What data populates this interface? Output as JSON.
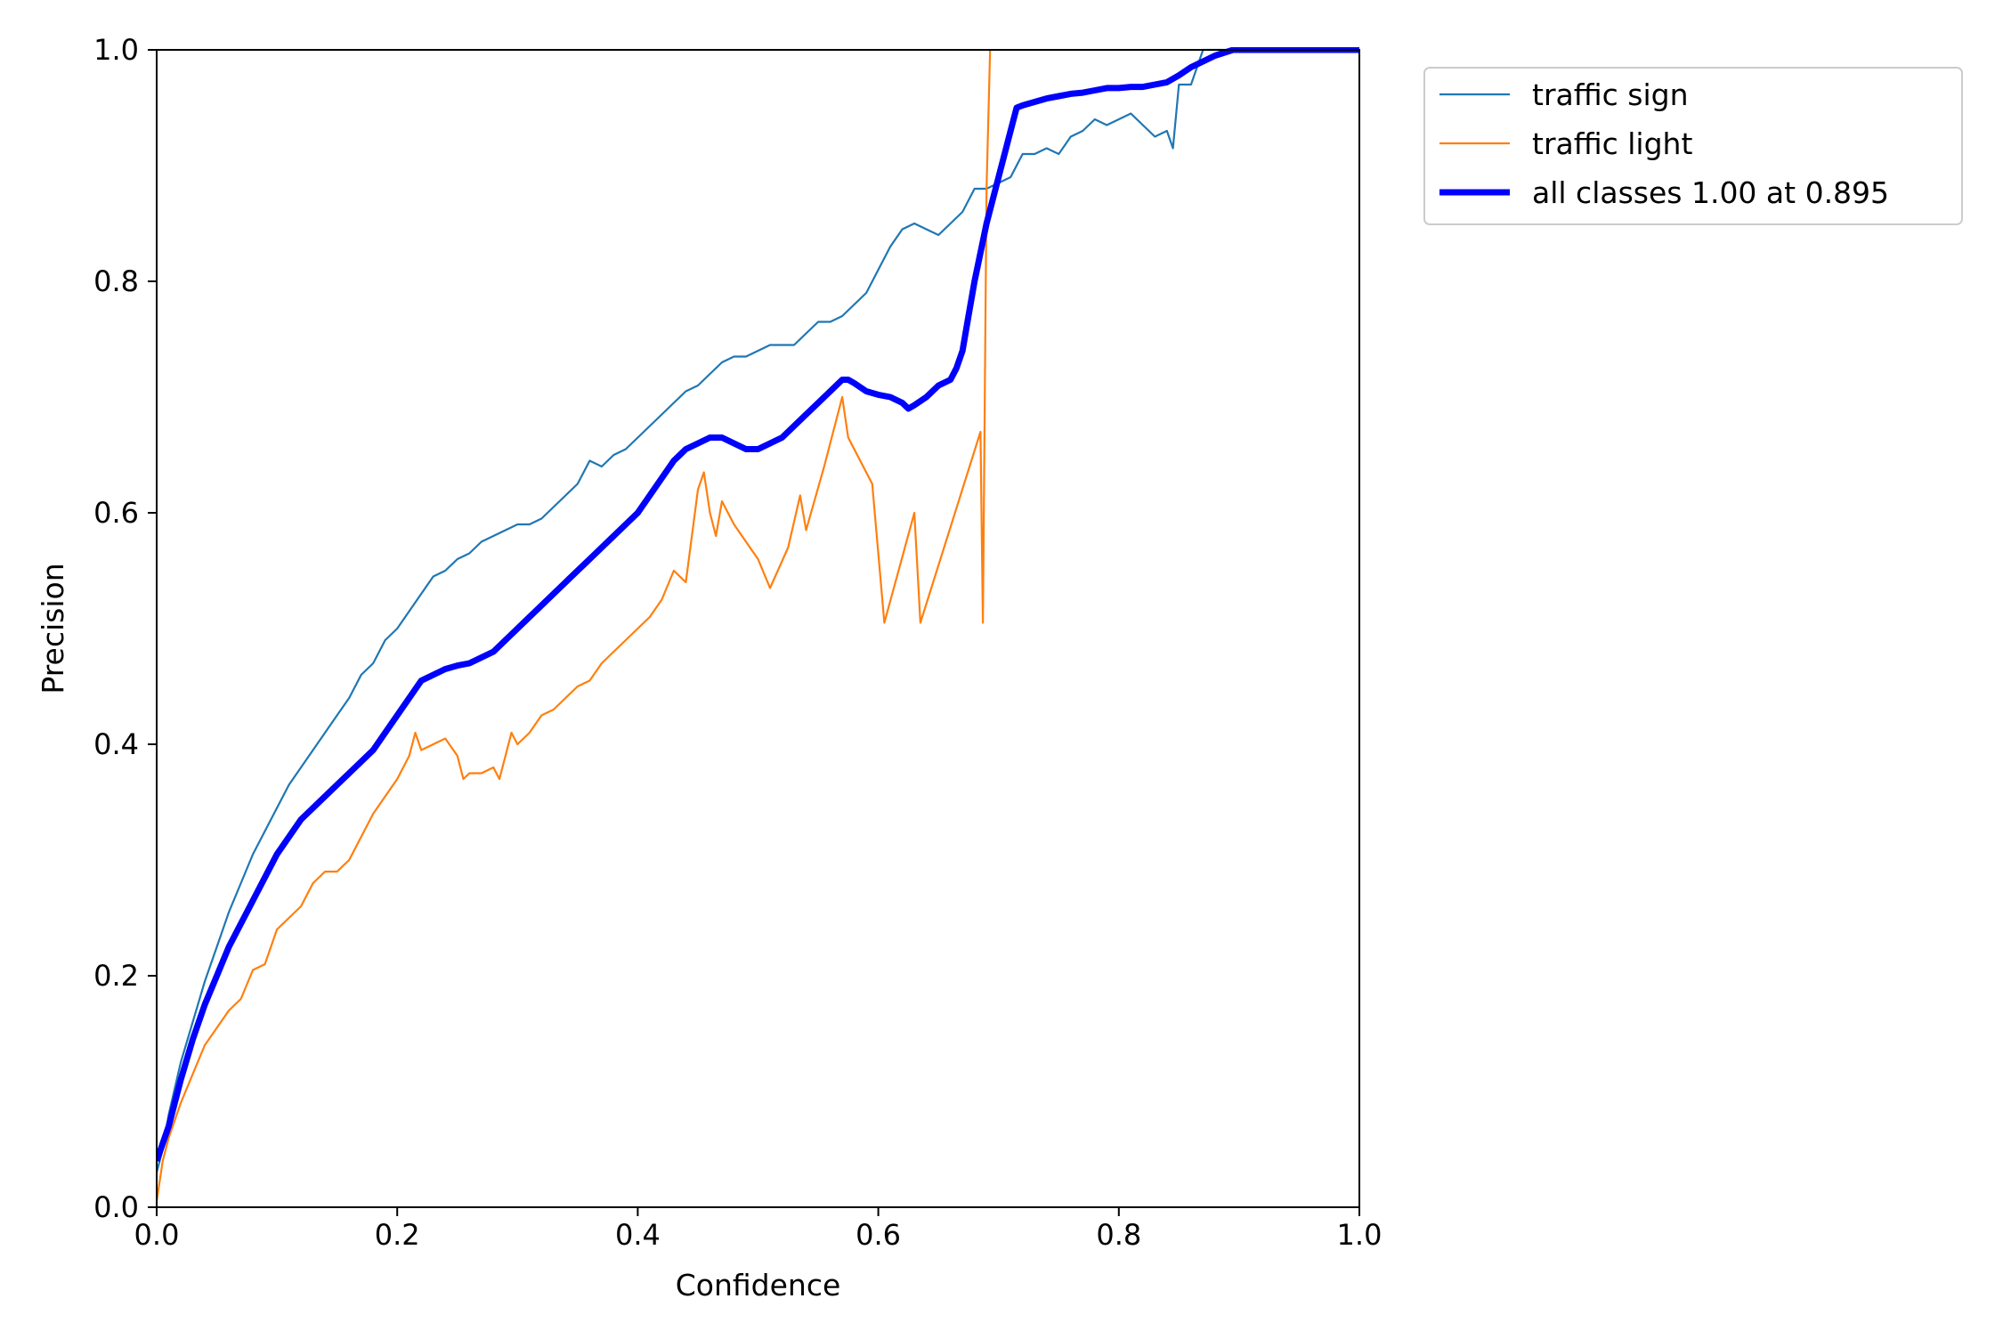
{
  "chart_data": {
    "type": "line",
    "title": "",
    "xlabel": "Confidence",
    "ylabel": "Precision",
    "xlim": [
      0.0,
      1.0
    ],
    "ylim": [
      0.0,
      1.0
    ],
    "xticks": [
      "0.0",
      "0.2",
      "0.4",
      "0.6",
      "0.8",
      "1.0"
    ],
    "yticks": [
      "0.0",
      "0.2",
      "0.4",
      "0.6",
      "0.8",
      "1.0"
    ],
    "grid": false,
    "legend_position": "outside-top-right",
    "series": [
      {
        "name": "traffic sign",
        "color": "#1f77b4",
        "line_weight": "thin",
        "points": [
          [
            0.0,
            0.03
          ],
          [
            0.005,
            0.05
          ],
          [
            0.01,
            0.08
          ],
          [
            0.02,
            0.125
          ],
          [
            0.03,
            0.16
          ],
          [
            0.04,
            0.195
          ],
          [
            0.05,
            0.225
          ],
          [
            0.06,
            0.255
          ],
          [
            0.07,
            0.28
          ],
          [
            0.08,
            0.305
          ],
          [
            0.09,
            0.325
          ],
          [
            0.1,
            0.345
          ],
          [
            0.11,
            0.365
          ],
          [
            0.12,
            0.38
          ],
          [
            0.13,
            0.395
          ],
          [
            0.14,
            0.41
          ],
          [
            0.15,
            0.425
          ],
          [
            0.16,
            0.44
          ],
          [
            0.17,
            0.46
          ],
          [
            0.18,
            0.47
          ],
          [
            0.19,
            0.49
          ],
          [
            0.2,
            0.5
          ],
          [
            0.21,
            0.515
          ],
          [
            0.22,
            0.53
          ],
          [
            0.23,
            0.545
          ],
          [
            0.24,
            0.55
          ],
          [
            0.25,
            0.56
          ],
          [
            0.26,
            0.565
          ],
          [
            0.27,
            0.575
          ],
          [
            0.28,
            0.58
          ],
          [
            0.29,
            0.585
          ],
          [
            0.3,
            0.59
          ],
          [
            0.31,
            0.59
          ],
          [
            0.32,
            0.595
          ],
          [
            0.33,
            0.605
          ],
          [
            0.34,
            0.615
          ],
          [
            0.35,
            0.625
          ],
          [
            0.36,
            0.645
          ],
          [
            0.37,
            0.64
          ],
          [
            0.38,
            0.65
          ],
          [
            0.39,
            0.655
          ],
          [
            0.4,
            0.665
          ],
          [
            0.41,
            0.675
          ],
          [
            0.42,
            0.685
          ],
          [
            0.43,
            0.695
          ],
          [
            0.44,
            0.705
          ],
          [
            0.45,
            0.71
          ],
          [
            0.46,
            0.72
          ],
          [
            0.47,
            0.73
          ],
          [
            0.48,
            0.735
          ],
          [
            0.49,
            0.735
          ],
          [
            0.5,
            0.74
          ],
          [
            0.51,
            0.745
          ],
          [
            0.52,
            0.745
          ],
          [
            0.53,
            0.745
          ],
          [
            0.54,
            0.755
          ],
          [
            0.55,
            0.765
          ],
          [
            0.56,
            0.765
          ],
          [
            0.57,
            0.77
          ],
          [
            0.58,
            0.78
          ],
          [
            0.59,
            0.79
          ],
          [
            0.6,
            0.81
          ],
          [
            0.61,
            0.83
          ],
          [
            0.62,
            0.845
          ],
          [
            0.63,
            0.85
          ],
          [
            0.64,
            0.845
          ],
          [
            0.65,
            0.84
          ],
          [
            0.66,
            0.85
          ],
          [
            0.67,
            0.86
          ],
          [
            0.68,
            0.88
          ],
          [
            0.69,
            0.88
          ],
          [
            0.7,
            0.885
          ],
          [
            0.71,
            0.89
          ],
          [
            0.72,
            0.91
          ],
          [
            0.73,
            0.91
          ],
          [
            0.74,
            0.915
          ],
          [
            0.75,
            0.91
          ],
          [
            0.76,
            0.925
          ],
          [
            0.77,
            0.93
          ],
          [
            0.78,
            0.94
          ],
          [
            0.79,
            0.935
          ],
          [
            0.8,
            0.94
          ],
          [
            0.81,
            0.945
          ],
          [
            0.82,
            0.935
          ],
          [
            0.83,
            0.925
          ],
          [
            0.84,
            0.93
          ],
          [
            0.845,
            0.915
          ],
          [
            0.85,
            0.97
          ],
          [
            0.86,
            0.97
          ],
          [
            0.87,
            1.0
          ],
          [
            0.9,
            1.0
          ],
          [
            1.0,
            1.0
          ]
        ]
      },
      {
        "name": "traffic light",
        "color": "#ff7f0e",
        "line_weight": "thin",
        "points": [
          [
            0.0,
            0.005
          ],
          [
            0.005,
            0.04
          ],
          [
            0.01,
            0.06
          ],
          [
            0.02,
            0.09
          ],
          [
            0.03,
            0.115
          ],
          [
            0.04,
            0.14
          ],
          [
            0.05,
            0.155
          ],
          [
            0.06,
            0.17
          ],
          [
            0.07,
            0.18
          ],
          [
            0.08,
            0.205
          ],
          [
            0.09,
            0.21
          ],
          [
            0.1,
            0.24
          ],
          [
            0.11,
            0.25
          ],
          [
            0.12,
            0.26
          ],
          [
            0.13,
            0.28
          ],
          [
            0.14,
            0.29
          ],
          [
            0.15,
            0.29
          ],
          [
            0.16,
            0.3
          ],
          [
            0.17,
            0.32
          ],
          [
            0.18,
            0.34
          ],
          [
            0.19,
            0.355
          ],
          [
            0.2,
            0.37
          ],
          [
            0.21,
            0.39
          ],
          [
            0.215,
            0.41
          ],
          [
            0.22,
            0.395
          ],
          [
            0.23,
            0.4
          ],
          [
            0.24,
            0.405
          ],
          [
            0.25,
            0.39
          ],
          [
            0.255,
            0.37
          ],
          [
            0.26,
            0.375
          ],
          [
            0.27,
            0.375
          ],
          [
            0.28,
            0.38
          ],
          [
            0.285,
            0.37
          ],
          [
            0.29,
            0.39
          ],
          [
            0.295,
            0.41
          ],
          [
            0.3,
            0.4
          ],
          [
            0.31,
            0.41
          ],
          [
            0.32,
            0.425
          ],
          [
            0.33,
            0.43
          ],
          [
            0.34,
            0.44
          ],
          [
            0.35,
            0.45
          ],
          [
            0.36,
            0.455
          ],
          [
            0.37,
            0.47
          ],
          [
            0.38,
            0.48
          ],
          [
            0.39,
            0.49
          ],
          [
            0.4,
            0.5
          ],
          [
            0.41,
            0.51
          ],
          [
            0.42,
            0.525
          ],
          [
            0.43,
            0.55
          ],
          [
            0.44,
            0.54
          ],
          [
            0.445,
            0.58
          ],
          [
            0.45,
            0.62
          ],
          [
            0.455,
            0.635
          ],
          [
            0.46,
            0.6
          ],
          [
            0.465,
            0.58
          ],
          [
            0.47,
            0.61
          ],
          [
            0.48,
            0.59
          ],
          [
            0.5,
            0.56
          ],
          [
            0.51,
            0.535
          ],
          [
            0.525,
            0.57
          ],
          [
            0.535,
            0.615
          ],
          [
            0.54,
            0.585
          ],
          [
            0.555,
            0.64
          ],
          [
            0.57,
            0.7
          ],
          [
            0.575,
            0.665
          ],
          [
            0.595,
            0.625
          ],
          [
            0.605,
            0.505
          ],
          [
            0.63,
            0.6
          ],
          [
            0.635,
            0.505
          ],
          [
            0.685,
            0.67
          ],
          [
            0.687,
            0.505
          ],
          [
            0.69,
            0.88
          ],
          [
            0.693,
            1.0
          ]
        ]
      },
      {
        "name": "all classes 1.00 at 0.895",
        "color": "#0000ff",
        "line_weight": "thick",
        "points": [
          [
            0.0,
            0.04
          ],
          [
            0.01,
            0.07
          ],
          [
            0.02,
            0.11
          ],
          [
            0.03,
            0.145
          ],
          [
            0.04,
            0.175
          ],
          [
            0.05,
            0.2
          ],
          [
            0.06,
            0.225
          ],
          [
            0.07,
            0.245
          ],
          [
            0.08,
            0.265
          ],
          [
            0.09,
            0.285
          ],
          [
            0.1,
            0.305
          ],
          [
            0.11,
            0.32
          ],
          [
            0.12,
            0.335
          ],
          [
            0.13,
            0.345
          ],
          [
            0.14,
            0.355
          ],
          [
            0.15,
            0.365
          ],
          [
            0.16,
            0.375
          ],
          [
            0.17,
            0.385
          ],
          [
            0.18,
            0.395
          ],
          [
            0.19,
            0.41
          ],
          [
            0.2,
            0.425
          ],
          [
            0.21,
            0.44
          ],
          [
            0.22,
            0.455
          ],
          [
            0.23,
            0.46
          ],
          [
            0.24,
            0.465
          ],
          [
            0.25,
            0.468
          ],
          [
            0.26,
            0.47
          ],
          [
            0.27,
            0.475
          ],
          [
            0.28,
            0.48
          ],
          [
            0.29,
            0.49
          ],
          [
            0.3,
            0.5
          ],
          [
            0.31,
            0.51
          ],
          [
            0.32,
            0.52
          ],
          [
            0.33,
            0.53
          ],
          [
            0.34,
            0.54
          ],
          [
            0.35,
            0.55
          ],
          [
            0.36,
            0.56
          ],
          [
            0.37,
            0.57
          ],
          [
            0.38,
            0.58
          ],
          [
            0.39,
            0.59
          ],
          [
            0.4,
            0.6
          ],
          [
            0.41,
            0.615
          ],
          [
            0.42,
            0.63
          ],
          [
            0.43,
            0.645
          ],
          [
            0.44,
            0.655
          ],
          [
            0.45,
            0.66
          ],
          [
            0.46,
            0.665
          ],
          [
            0.47,
            0.665
          ],
          [
            0.48,
            0.66
          ],
          [
            0.49,
            0.655
          ],
          [
            0.5,
            0.655
          ],
          [
            0.51,
            0.66
          ],
          [
            0.52,
            0.665
          ],
          [
            0.53,
            0.675
          ],
          [
            0.54,
            0.685
          ],
          [
            0.55,
            0.695
          ],
          [
            0.56,
            0.705
          ],
          [
            0.57,
            0.715
          ],
          [
            0.575,
            0.715
          ],
          [
            0.58,
            0.712
          ],
          [
            0.59,
            0.705
          ],
          [
            0.6,
            0.702
          ],
          [
            0.61,
            0.7
          ],
          [
            0.62,
            0.695
          ],
          [
            0.625,
            0.69
          ],
          [
            0.63,
            0.693
          ],
          [
            0.64,
            0.7
          ],
          [
            0.65,
            0.71
          ],
          [
            0.66,
            0.715
          ],
          [
            0.665,
            0.725
          ],
          [
            0.67,
            0.74
          ],
          [
            0.675,
            0.77
          ],
          [
            0.68,
            0.8
          ],
          [
            0.69,
            0.85
          ],
          [
            0.7,
            0.89
          ],
          [
            0.71,
            0.93
          ],
          [
            0.715,
            0.95
          ],
          [
            0.72,
            0.952
          ],
          [
            0.73,
            0.955
          ],
          [
            0.74,
            0.958
          ],
          [
            0.75,
            0.96
          ],
          [
            0.76,
            0.962
          ],
          [
            0.77,
            0.963
          ],
          [
            0.78,
            0.965
          ],
          [
            0.79,
            0.967
          ],
          [
            0.8,
            0.967
          ],
          [
            0.81,
            0.968
          ],
          [
            0.82,
            0.968
          ],
          [
            0.83,
            0.97
          ],
          [
            0.84,
            0.972
          ],
          [
            0.85,
            0.978
          ],
          [
            0.86,
            0.985
          ],
          [
            0.87,
            0.99
          ],
          [
            0.88,
            0.995
          ],
          [
            0.895,
            1.0
          ],
          [
            1.0,
            1.0
          ]
        ]
      }
    ]
  }
}
